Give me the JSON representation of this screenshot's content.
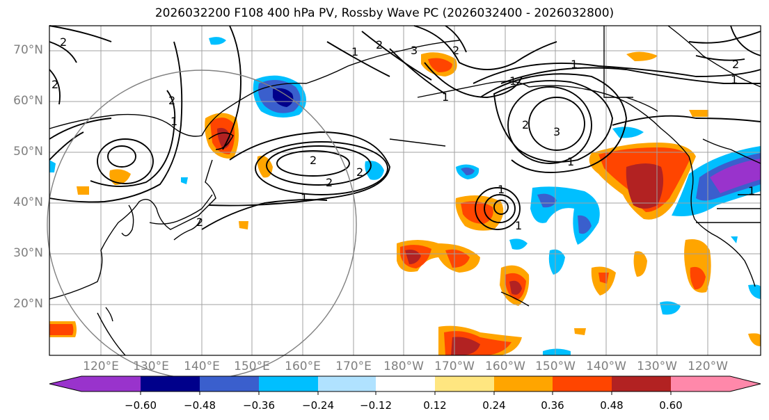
{
  "title": "2026032200 F108 400 hPa PV, Rossby Wave PC (2026032400 - 2026032800)",
  "lat_labels": [
    "70°N",
    "60°N",
    "50°N",
    "40°N",
    "30°N",
    "20°N"
  ],
  "lon_labels": [
    "120°E",
    "130°E",
    "140°E",
    "150°E",
    "160°E",
    "170°E",
    "180°W",
    "170°W",
    "160°W",
    "150°W",
    "140°W",
    "130°W",
    "120°W"
  ],
  "colorbar": {
    "labels": [
      "−0.60",
      "−0.48",
      "−0.36",
      "−0.24",
      "−0.12",
      "0.12",
      "0.24",
      "0.36",
      "0.48",
      "0.60"
    ],
    "colors": [
      "#9933cc",
      "#00008b",
      "#3a5fcd",
      "#00bfff",
      "#b0e2ff",
      "#ffffff",
      "#ffe680",
      "#ffa500",
      "#ff4500",
      "#b22222",
      "#ff88aa"
    ]
  },
  "contour_labels": [
    "2",
    "2",
    "2",
    "2",
    "3",
    "2",
    "1",
    "1",
    "1",
    "2",
    "3",
    "1",
    "1",
    "2",
    "1",
    "2",
    "1",
    "2",
    "1",
    "2",
    "1",
    "1",
    "1",
    "2"
  ],
  "colors": {
    "ocean": "#ffffff",
    "grid": "#a0a0a0",
    "contour": "#000000"
  }
}
